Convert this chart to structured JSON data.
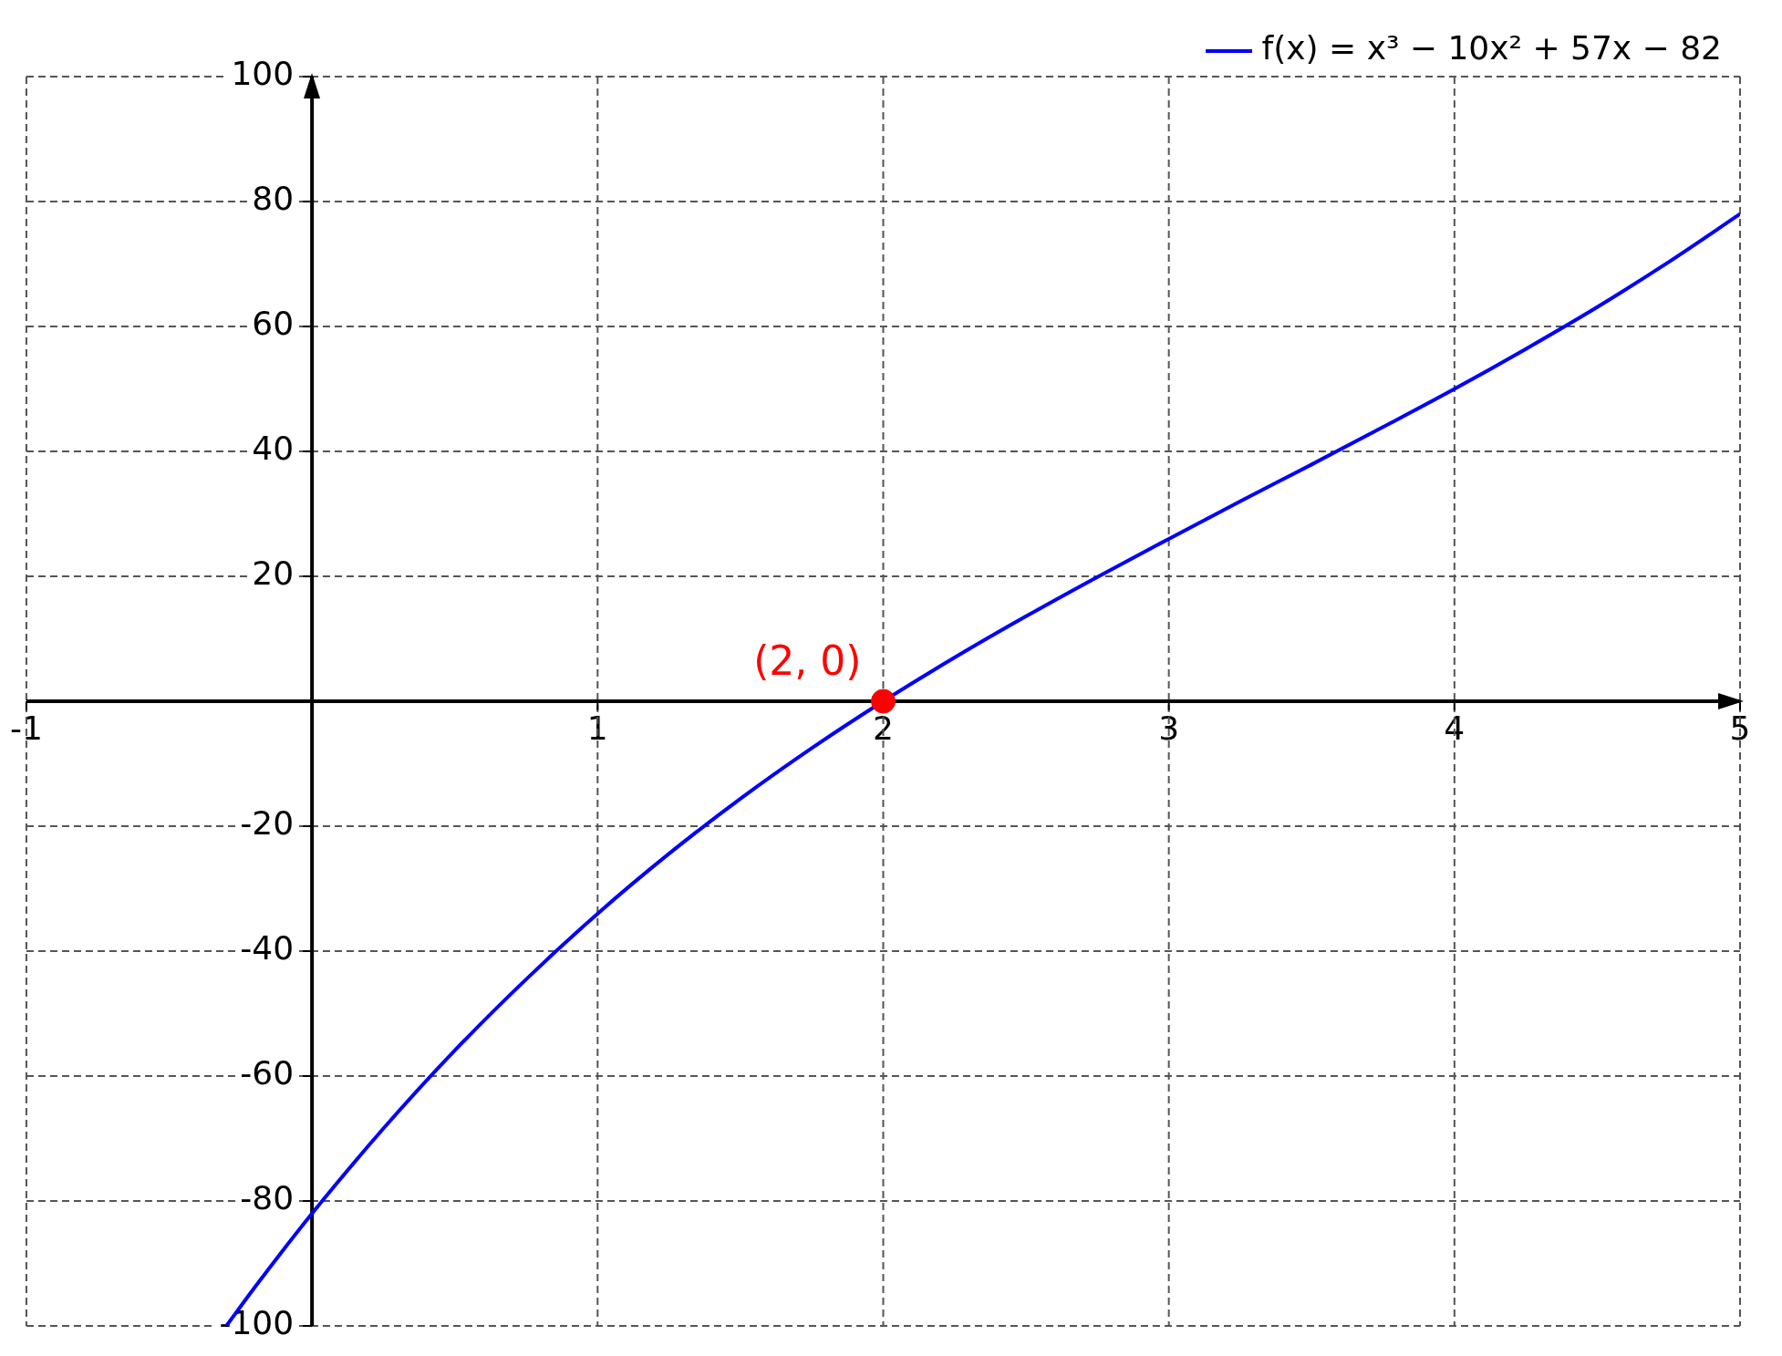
{
  "chart_data": {
    "type": "line",
    "x": [
      -0.3,
      -0.2,
      -0.1,
      0,
      0.25,
      0.5,
      0.75,
      1,
      1.25,
      1.5,
      1.75,
      2,
      2.25,
      2.5,
      2.75,
      3,
      3.25,
      3.5,
      3.75,
      4,
      4.25,
      4.5,
      4.75,
      5
    ],
    "series": [
      {
        "name": "f(x) = x³ − 10x² + 57x − 82",
        "color": "#0000ff",
        "marker": "none",
        "values": [
          -100,
          -93.8,
          -87.8,
          -82,
          -68.4,
          -55.9,
          -44.5,
          -34,
          -24.4,
          -15.6,
          -7.5,
          0,
          7,
          13.6,
          19.9,
          26,
          32,
          37.9,
          43.9,
          50,
          56.4,
          63.1,
          70.3,
          78
        ]
      },
      {
        "type": "scatter",
        "color": "#ff0000",
        "marker": "circle",
        "x": [
          2
        ],
        "values": [
          0
        ]
      }
    ],
    "annotations": [
      {
        "text": "(2, 0)",
        "x": 2,
        "y": 0
      }
    ],
    "xlim": [
      -1,
      5
    ],
    "xticks": [
      -1,
      1,
      2,
      3,
      4,
      5
    ],
    "ylim": [
      -100,
      100
    ],
    "yticks": [
      -100,
      -80,
      -60,
      -40,
      -20,
      20,
      40,
      60,
      80,
      100
    ],
    "grid": true,
    "legend": "top right",
    "line_style": "solid"
  }
}
